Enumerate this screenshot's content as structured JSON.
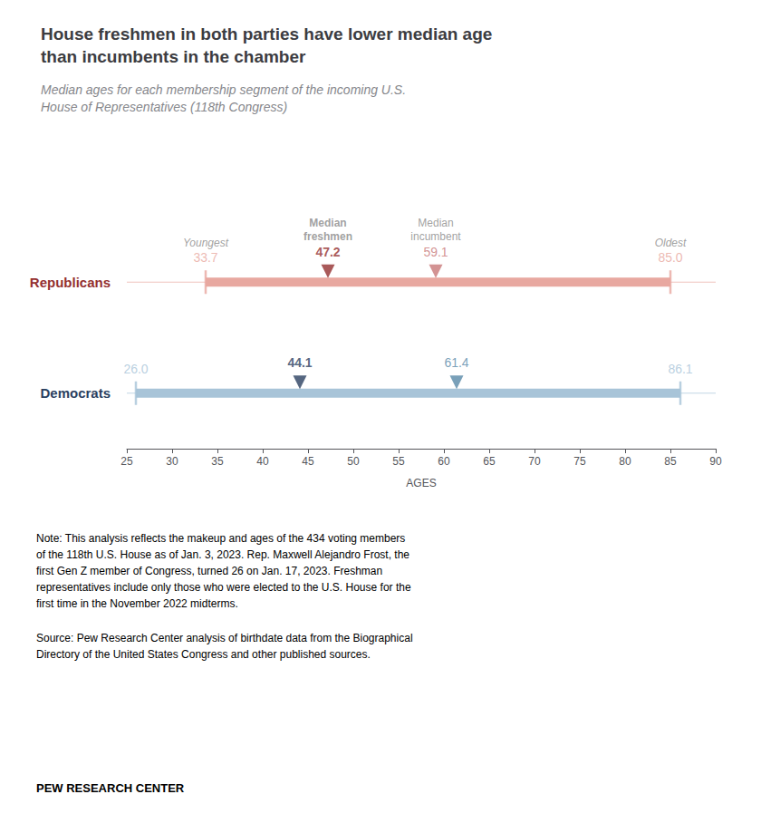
{
  "chart_data": {
    "type": "range",
    "orientation": "horizontal",
    "title": "House freshmen in both parties have lower median age\nthan incumbents in the chamber",
    "subtitle": "Median ages for each membership segment of the incoming U.S.\nHouse of Representatives (118th Congress)",
    "xlabel": "AGES",
    "categories": [
      "Republicans",
      "Democrats"
    ],
    "colors": [
      "#e8a8a0",
      "#a8c4d8"
    ],
    "series": [
      {
        "name": "Youngest",
        "values": [
          33.7,
          26.0
        ],
        "value_labels": [
          "33.7",
          "26.0"
        ],
        "colors": [
          "#e8a8a0",
          "#a8c4d8"
        ]
      },
      {
        "name": "Oldest",
        "values": [
          85.0,
          86.1
        ],
        "value_labels": [
          "85.0",
          "86.1"
        ],
        "colors": [
          "#e8a8a0",
          "#a8c4d8"
        ]
      },
      {
        "name": "Median\nfreshmen",
        "values": [
          47.2,
          44.1
        ],
        "colors": [
          "#943030",
          "#2a4060"
        ]
      },
      {
        "name": "Median\nincumbent",
        "values": [
          59.1,
          61.4
        ],
        "colors": [
          "#c87878",
          "#5888a8"
        ]
      }
    ],
    "xlim": [
      25,
      90
    ],
    "xticks": [
      25,
      30,
      35,
      40,
      45,
      50,
      55,
      60,
      65,
      70,
      75,
      80,
      85,
      90
    ],
    "data_labels": true,
    "grid": false,
    "annotations": [
      "Note: This analysis reflects the makeup and ages of the 434 voting members\nof the 118th U.S. House as of Jan. 3, 2023. Rep. Maxwell Alejandro Frost, the\nfirst Gen Z member of Congress, turned 26 on Jan. 17, 2023. Freshman\nrepresentatives include only those who were elected to the U.S. House for the\nfirst time in the November 2022 midterms.",
      "Source: Pew Research Center analysis of birthdate data from the Biographical\nDirectory of the United States Congress and other published sources.",
      "PEW RESEARCH CENTER"
    ]
  }
}
